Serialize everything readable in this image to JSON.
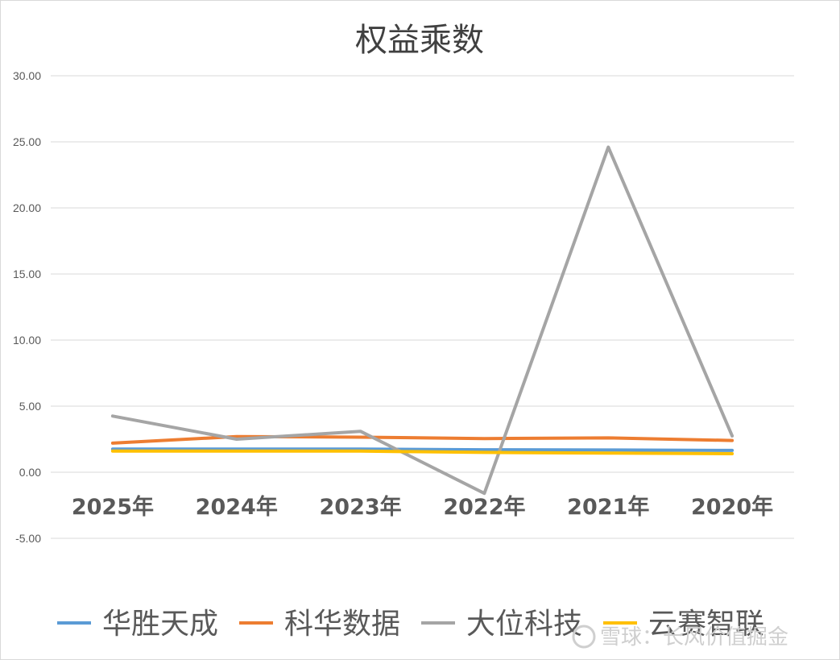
{
  "chart_data": {
    "type": "line",
    "title": "权益乘数",
    "xlabel": "",
    "ylabel": "",
    "categories": [
      "2025年",
      "2024年",
      "2023年",
      "2022年",
      "2021年",
      "2020年"
    ],
    "ylim": [
      -5,
      30
    ],
    "yticks": [
      "30.00",
      "25.00",
      "20.00",
      "15.00",
      "10.00",
      "5.00",
      "0.00",
      "-5.00"
    ],
    "ytick_values": [
      30,
      25,
      20,
      15,
      10,
      5,
      0,
      -5
    ],
    "grid": true,
    "legend_position": "bottom",
    "series": [
      {
        "name": "华胜天成",
        "color": "#5b9bd5",
        "values": [
          1.75,
          1.75,
          1.75,
          1.7,
          1.68,
          1.65
        ]
      },
      {
        "name": "科华数据",
        "color": "#ed7d31",
        "values": [
          2.2,
          2.7,
          2.65,
          2.55,
          2.6,
          2.4
        ]
      },
      {
        "name": "大位科技",
        "color": "#a5a5a5",
        "values": [
          4.25,
          2.5,
          3.1,
          -1.6,
          24.6,
          2.75
        ]
      },
      {
        "name": "云赛智联",
        "color": "#ffc000",
        "values": [
          1.6,
          1.6,
          1.6,
          1.5,
          1.45,
          1.4
        ]
      }
    ]
  },
  "watermark": "雪球：长风价值掘金"
}
